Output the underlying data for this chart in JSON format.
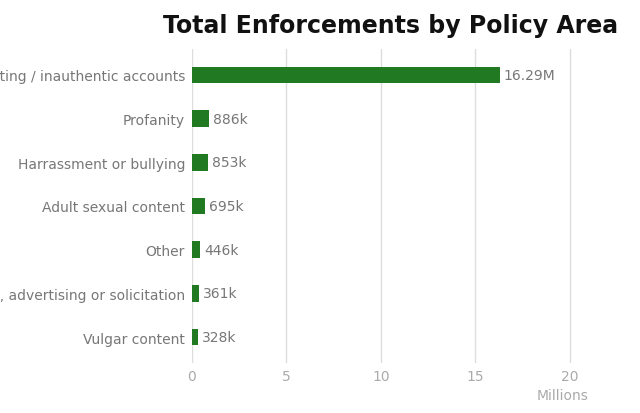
{
  "title": "Total Enforcements by Policy Area",
  "categories": [
    "Vulgar content",
    "Spam, advertising or solicitation",
    "Other",
    "Adult sexual content",
    "Harrassment or bullying",
    "Profanity",
    "Cheating / inauthentic accounts"
  ],
  "values": [
    328000,
    361000,
    446000,
    695000,
    853000,
    886000,
    16290000
  ],
  "labels": [
    "328k",
    "361k",
    "446k",
    "695k",
    "853k",
    "886k",
    "16.29M"
  ],
  "bar_color": "#217a21",
  "background_color": "#ffffff",
  "xlabel": "Millions",
  "xlim": [
    0,
    21000000
  ],
  "xticks": [
    0,
    5000000,
    10000000,
    15000000,
    20000000
  ],
  "xtick_labels": [
    "0",
    "5",
    "10",
    "15",
    "20"
  ],
  "title_fontsize": 17,
  "label_fontsize": 10,
  "tick_fontsize": 10,
  "xlabel_fontsize": 10,
  "bar_height": 0.38
}
